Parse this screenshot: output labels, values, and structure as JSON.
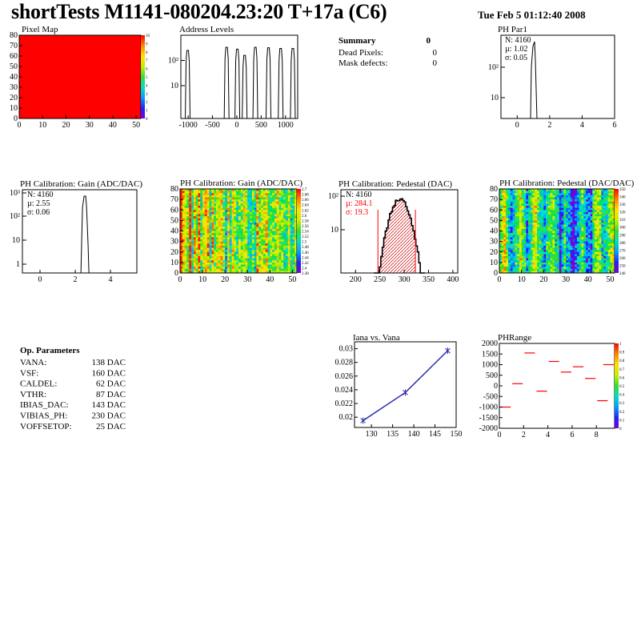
{
  "header": {
    "title": "shortTests M1141-080204.23:20 T+17a (C6)",
    "date": "Tue Feb  5 01:12:40 2008"
  },
  "summary": {
    "title": "Summary",
    "total": "0",
    "rows": [
      {
        "label": "Dead Pixels:",
        "value": "0"
      },
      {
        "label": "Mask defects:",
        "value": "0"
      }
    ]
  },
  "op_params": {
    "title": "Op. Parameters",
    "rows": [
      {
        "label": "VANA:",
        "value": "138 DAC"
      },
      {
        "label": "VSF:",
        "value": "160 DAC"
      },
      {
        "label": "CALDEL:",
        "value": "62 DAC"
      },
      {
        "label": "VTHR:",
        "value": "87 DAC"
      },
      {
        "label": "IBIAS_DAC:",
        "value": "143 DAC"
      },
      {
        "label": "VIBIAS_PH:",
        "value": "230 DAC"
      },
      {
        "label": "VOFFSETOP:",
        "value": "25 DAC"
      }
    ]
  },
  "colors": {
    "red": "#ff0000",
    "blue_line": "#2b2bb0",
    "axis": "#000000"
  },
  "chart_data": [
    {
      "id": "pixel-map",
      "type": "heatmap",
      "title": "Pixel Map",
      "xlim": [
        0,
        52
      ],
      "ylim": [
        0,
        80
      ],
      "xticks": [
        "0",
        "10",
        "20",
        "30",
        "40",
        "50"
      ],
      "yticks": [
        "0",
        "10",
        "20",
        "30",
        "40",
        "50",
        "60",
        "70",
        "80"
      ],
      "zlim": [
        0,
        10
      ],
      "ztick_labels": [
        "0",
        "1",
        "2",
        "3",
        "4",
        "5",
        "6",
        "7",
        "8",
        "9",
        "10"
      ],
      "fill_value": 10
    },
    {
      "id": "address-levels",
      "type": "bar",
      "title": "Address Levels",
      "xlim": [
        -1150,
        1250
      ],
      "xticks": [
        "-1000",
        "-500",
        "0",
        "500",
        "1000"
      ],
      "yticks": [
        "10",
        "10²"
      ],
      "log_y": true,
      "peaks": [
        {
          "x": -1010,
          "h": 250
        },
        {
          "x": -210,
          "h": 330
        },
        {
          "x": 10,
          "h": 280
        },
        {
          "x": 160,
          "h": 160
        },
        {
          "x": 380,
          "h": 330
        },
        {
          "x": 650,
          "h": 320
        },
        {
          "x": 900,
          "h": 300
        },
        {
          "x": 1150,
          "h": 300
        }
      ]
    },
    {
      "id": "ph-par1",
      "type": "bar",
      "title": "PH Par1",
      "xlim": [
        -1,
        6
      ],
      "xticks": [
        "0",
        "2",
        "4",
        "6"
      ],
      "yticks": [
        "10",
        "10²"
      ],
      "log_y": true,
      "stats": {
        "N": "N: 4160",
        "mean": "µ: 1.02",
        "sigma": "σ: 0.05"
      }
    },
    {
      "id": "gain-hist",
      "type": "bar",
      "title": "PH Calibration: Gain (ADC/DAC)",
      "xlim": [
        -1,
        5.5
      ],
      "xticks": [
        "0",
        "2",
        "4"
      ],
      "yticks": [
        "1",
        "10",
        "10²",
        "10³"
      ],
      "log_y": true,
      "stats": {
        "N": "N: 4160",
        "mean": "µ: 2.55",
        "sigma": "σ: 0.06"
      }
    },
    {
      "id": "gain-map",
      "type": "heatmap",
      "title": "PH Calibration: Gain (ADC/DAC)",
      "xlim": [
        0,
        52
      ],
      "ylim": [
        0,
        80
      ],
      "xticks": [
        "0",
        "10",
        "20",
        "30",
        "40",
        "50"
      ],
      "yticks": [
        "0",
        "10",
        "20",
        "30",
        "40",
        "50",
        "60",
        "70",
        "80"
      ],
      "ztick_labels": [
        "2.38",
        "2.4",
        "2.42",
        "2.44",
        "2.46",
        "2.48",
        "2.5",
        "2.52",
        "2.54",
        "2.56",
        "2.58",
        "2.6",
        "2.62",
        "2.64",
        "2.66",
        "2.68",
        "2.7"
      ]
    },
    {
      "id": "pedestal-hist",
      "type": "bar",
      "title": "PH Calibration: Pedestal (DAC)",
      "xlim": [
        170,
        410
      ],
      "xticks": [
        "200",
        "250",
        "300",
        "350",
        "400"
      ],
      "yticks": [
        "10",
        "10²"
      ],
      "log_y": true,
      "stats": {
        "N": "N: 4160",
        "mean": "µ: 284.1",
        "sigma": "σ: 19.3"
      }
    },
    {
      "id": "pedestal-map",
      "type": "heatmap",
      "title": "PH Calibration: Pedestal (DAC/DAC)",
      "xlim": [
        0,
        52
      ],
      "ylim": [
        0,
        80
      ],
      "xticks": [
        "0",
        "10",
        "20",
        "30",
        "40",
        "50"
      ],
      "yticks": [
        "0",
        "10",
        "20",
        "30",
        "40",
        "50",
        "60",
        "70",
        "80"
      ],
      "ztick_labels": [
        "240",
        "250",
        "260",
        "270",
        "280",
        "290",
        "300",
        "310",
        "320",
        "330",
        "340",
        "350"
      ]
    },
    {
      "id": "iana-vana",
      "type": "line",
      "title": "Iana vs. Vana",
      "xlim": [
        126,
        150
      ],
      "ylim": [
        0.0185,
        0.031
      ],
      "xticks": [
        "130",
        "135",
        "140",
        "145",
        "150"
      ],
      "yticks": [
        "0.02",
        "0.022",
        "0.024",
        "0.026",
        "0.028",
        "0.03"
      ],
      "x": [
        128,
        138,
        148
      ],
      "y": [
        0.0195,
        0.0236,
        0.0297
      ]
    },
    {
      "id": "ph-range",
      "type": "scatter",
      "title": "PHRange",
      "xlim": [
        0,
        9.5
      ],
      "ylim": [
        -2000,
        2000
      ],
      "xticks": [
        "0",
        "2",
        "4",
        "6",
        "8"
      ],
      "yticks": [
        "-2000",
        "-1500",
        "-1000",
        "-500",
        "0",
        "500",
        "1000",
        "1500",
        "2000"
      ],
      "ztick_labels": [
        "0",
        "0.1",
        "0.2",
        "0.3",
        "0.4",
        "0.5",
        "0.6",
        "0.7",
        "0.8",
        "0.9",
        "1"
      ],
      "segments": [
        {
          "x0": 0,
          "x1": 1,
          "y": -1000
        },
        {
          "x0": 1,
          "x1": 2,
          "y": 100
        },
        {
          "x0": 2,
          "x1": 3,
          "y": 1550
        },
        {
          "x0": 3,
          "x1": 4,
          "y": -250
        },
        {
          "x0": 4,
          "x1": 5,
          "y": 1150
        },
        {
          "x0": 5,
          "x1": 6,
          "y": 650
        },
        {
          "x0": 6,
          "x1": 7,
          "y": 900
        },
        {
          "x0": 7,
          "x1": 8,
          "y": 350
        },
        {
          "x0": 8,
          "x1": 9,
          "y": -700
        },
        {
          "x0": 8.5,
          "x1": 9.5,
          "y": 1000
        }
      ]
    }
  ]
}
